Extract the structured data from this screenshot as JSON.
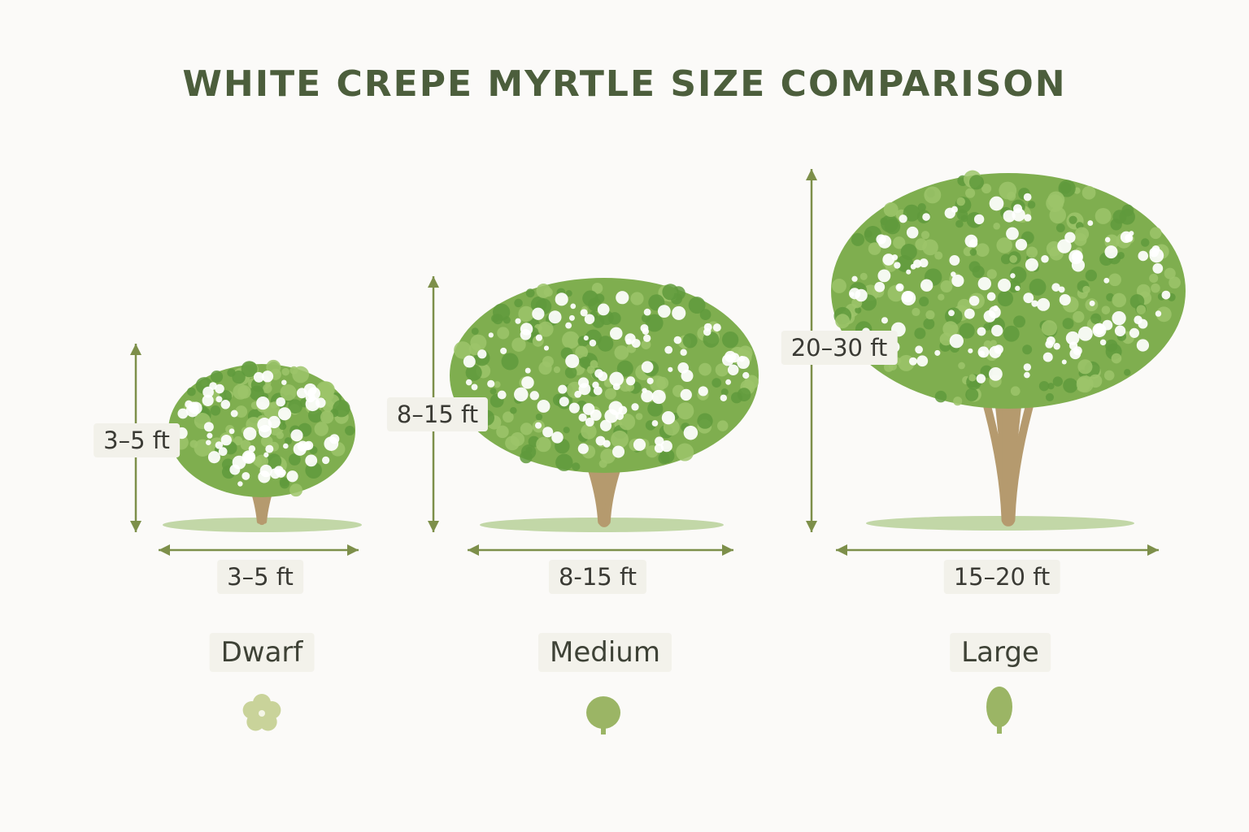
{
  "title": "WHITE CREPE MYRTLE SIZE COMPARISON",
  "colors": {
    "title": "#4c5e3c",
    "arrow": "#7d8f4a",
    "foliage": "#7fae4f",
    "flower": "#ffffff",
    "trunk": "#b59a6e",
    "icon_light": "#c9d39a",
    "icon": "#9bb565"
  },
  "trees": [
    {
      "category": "Dwarf",
      "height": "3–5 ft",
      "width": "3–5 ft",
      "icon": "flower-icon"
    },
    {
      "category": "Medium",
      "height": "8–15 ft",
      "width": "8-15 ft",
      "icon": "round-tree-icon"
    },
    {
      "category": "Large",
      "height": "20–30 ft",
      "width": "15–20 ft",
      "icon": "tall-tree-icon"
    }
  ]
}
